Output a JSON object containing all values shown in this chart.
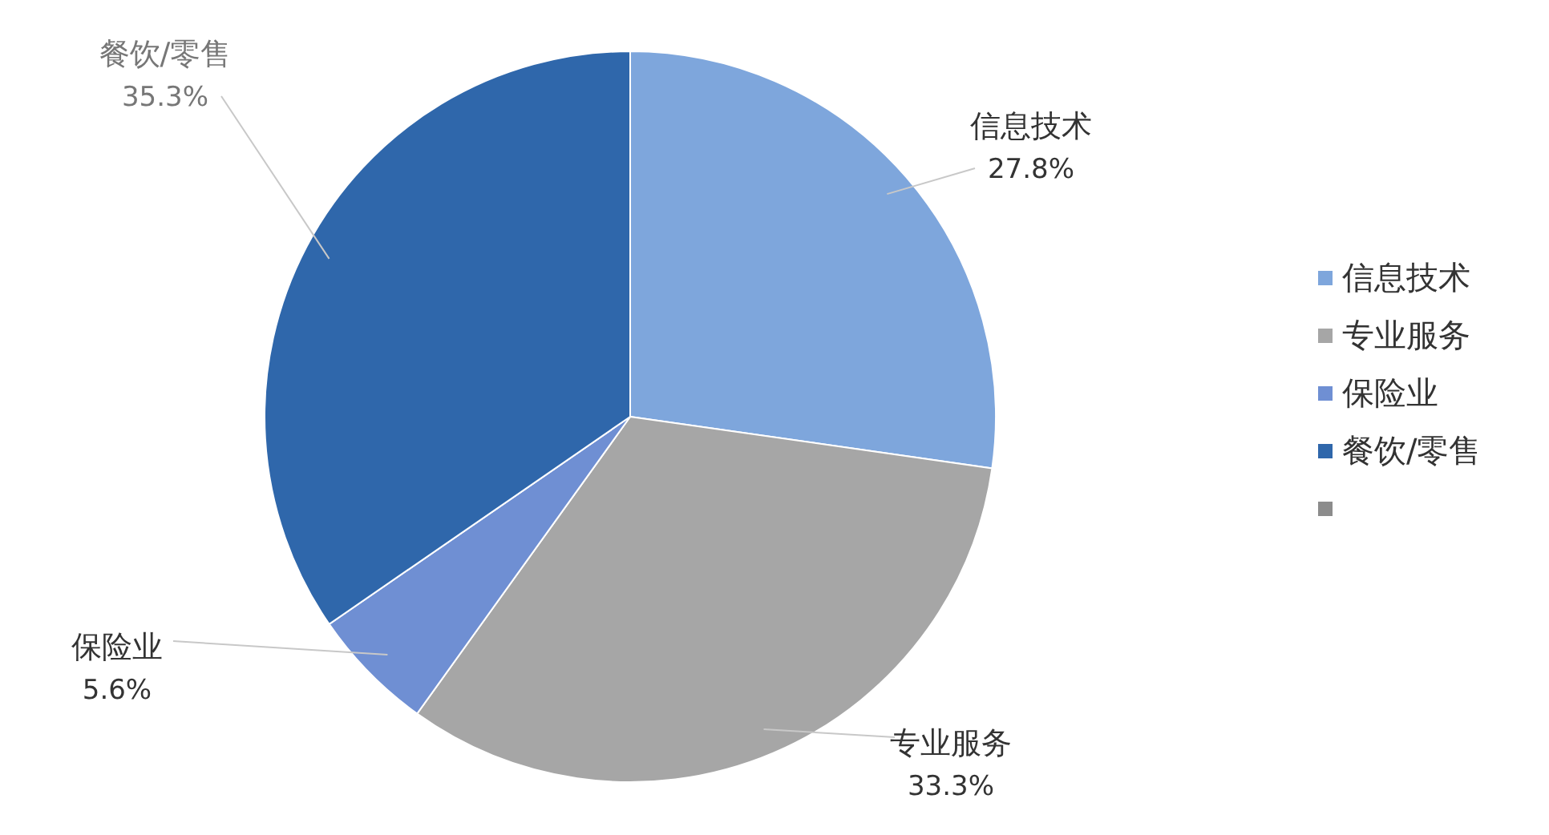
{
  "chart_data": {
    "type": "pie",
    "categories": [
      "信息技术",
      "专业服务",
      "保险业",
      "餐饮/零售",
      null
    ],
    "values": [
      27.8,
      33.3,
      5.6,
      35.3,
      0
    ],
    "value_labels": [
      "27.8%",
      "33.3%",
      "5.6%",
      "35.3%",
      null
    ],
    "colors": [
      "#7ea6dc",
      "#a6a6a6",
      "#6f8fd3",
      "#2f67ab",
      "#8c8c8c"
    ],
    "legend": "right"
  }
}
